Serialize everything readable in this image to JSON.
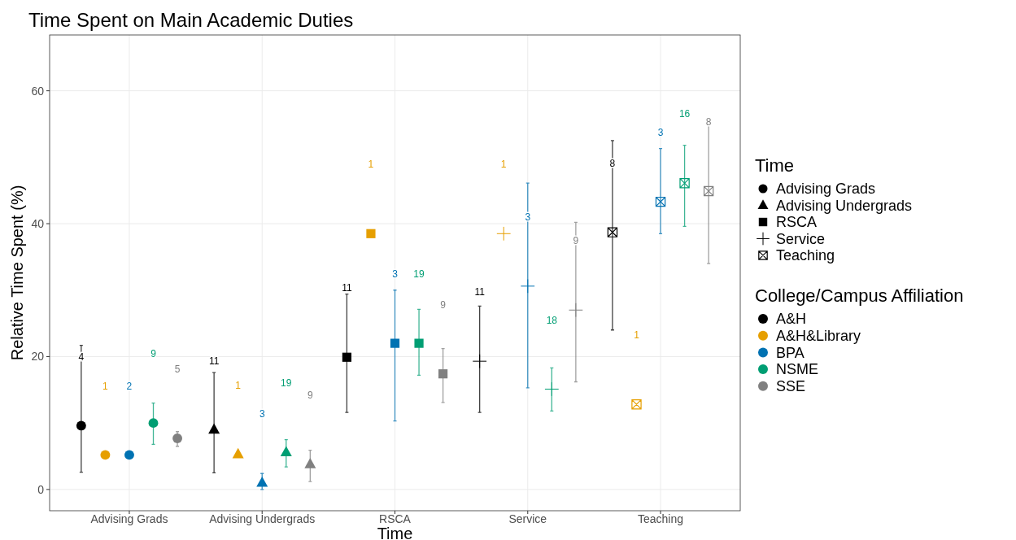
{
  "chart_data": {
    "type": "scatter",
    "title": "Time Spent on Main Academic Duties",
    "xlabel": "Time",
    "ylabel": "Relative Time Spent (%)",
    "legend_title": [
      "Time",
      "College/Campus Affiliation"
    ],
    "categories": [
      "Advising Grads",
      "Advising Undergrads",
      "RSCA",
      "Service",
      "Teaching"
    ],
    "marker": [
      "circle",
      "triangle",
      "square",
      "cross",
      "square-cross"
    ],
    "ylim": [
      -3.2,
      68.4
    ],
    "yticks": [
      0,
      20,
      40,
      60
    ],
    "grid": true,
    "legend": "right",
    "series": [
      {
        "name": "A&H",
        "color": "#000000",
        "values": [
          9.6,
          9.0,
          19.9,
          19.3,
          38.7
        ],
        "errors": [
          [
            2.6,
            21.7
          ],
          [
            2.5,
            17.6
          ],
          [
            11.6,
            29.4
          ],
          [
            11.6,
            27.6
          ],
          [
            24.0,
            52.5
          ]
        ]
      },
      {
        "name": "A&H&Library",
        "color": "#e69f00",
        "values": [
          5.2,
          5.3,
          38.5,
          38.5,
          12.8
        ],
        "errors": [
          null,
          null,
          null,
          null,
          null
        ]
      },
      {
        "name": "BPA",
        "color": "#0072b2",
        "values": [
          5.2,
          1.0,
          22.0,
          30.6,
          43.3
        ],
        "errors": [
          null,
          [
            0.0,
            2.4
          ],
          [
            10.3,
            30.0
          ],
          [
            15.3,
            46.1
          ],
          [
            38.5,
            51.3
          ]
        ]
      },
      {
        "name": "NSME",
        "color": "#009e73",
        "values": [
          10.0,
          5.6,
          22.0,
          15.1,
          46.1
        ],
        "errors": [
          [
            6.8,
            13.0
          ],
          [
            3.4,
            7.5
          ],
          [
            17.2,
            27.1
          ],
          [
            11.8,
            18.3
          ],
          [
            39.6,
            51.8
          ]
        ]
      },
      {
        "name": "SSE",
        "color": "#808080",
        "values": [
          7.7,
          3.8,
          17.4,
          27.0,
          44.9
        ],
        "errors": [
          [
            6.5,
            8.7
          ],
          [
            1.2,
            5.9
          ],
          [
            13.1,
            21.2
          ],
          [
            16.2,
            40.2
          ],
          [
            34.0,
            55.3
          ]
        ]
      }
    ],
    "annotations": [
      "4",
      "11",
      "11",
      "11",
      "8",
      "1",
      "1",
      "1",
      "1",
      "1",
      "2",
      "3",
      "3",
      "3",
      "3",
      "9",
      "19",
      "19",
      "18",
      "16",
      "5",
      "9",
      "9",
      "9",
      "8"
    ]
  }
}
